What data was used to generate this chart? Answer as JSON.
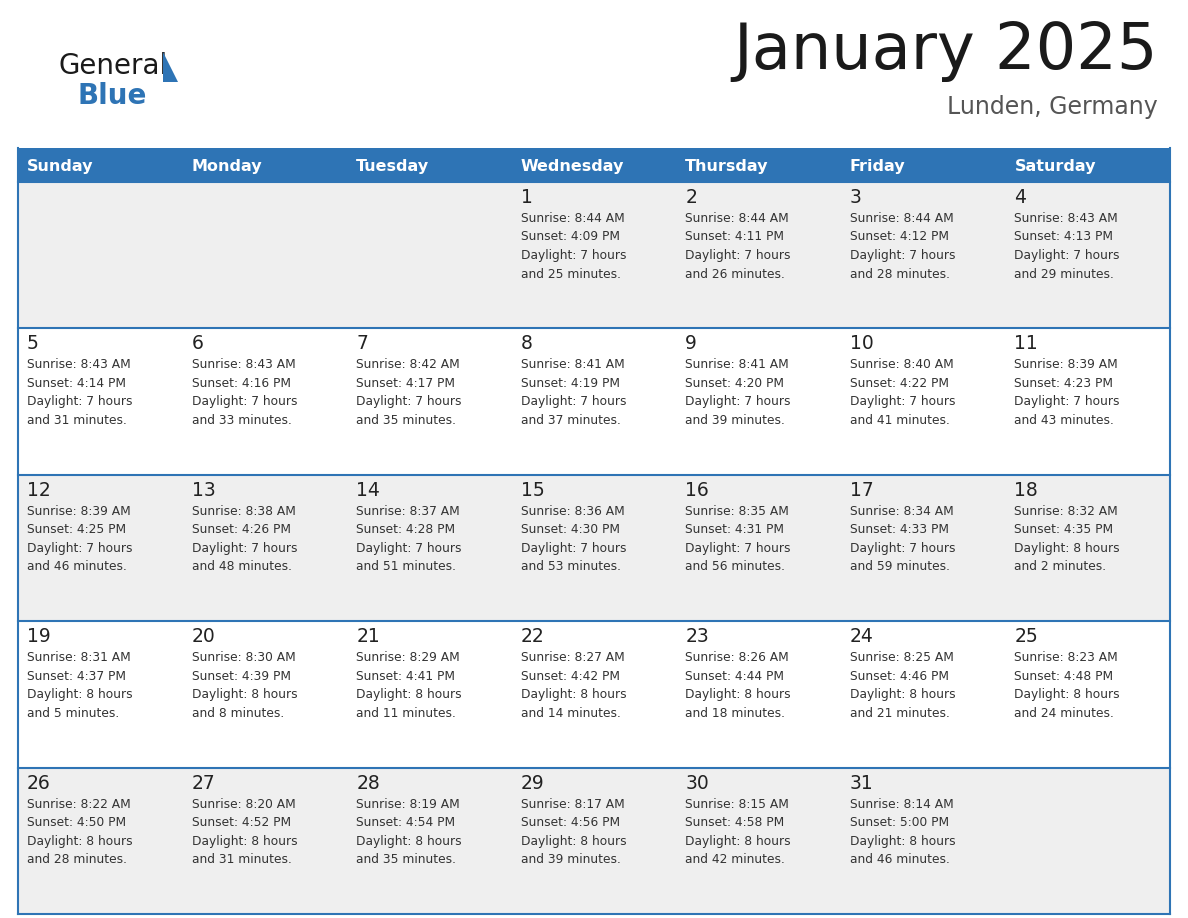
{
  "title": "January 2025",
  "subtitle": "Lunden, Germany",
  "days_of_week": [
    "Sunday",
    "Monday",
    "Tuesday",
    "Wednesday",
    "Thursday",
    "Friday",
    "Saturday"
  ],
  "header_bg": "#2E74B5",
  "header_text": "#FFFFFF",
  "row_bg_even": "#EFEFEF",
  "row_bg_odd": "#FFFFFF",
  "cell_border": "#2E74B5",
  "day_num_color": "#222222",
  "cell_text_color": "#333333",
  "title_color": "#1a1a1a",
  "subtitle_color": "#555555",
  "logo_general_color": "#1a1a1a",
  "logo_blue_color": "#2E74B5",
  "fig_width": 11.88,
  "fig_height": 9.18,
  "dpi": 100,
  "calendar": [
    [
      {
        "day": "",
        "info": ""
      },
      {
        "day": "",
        "info": ""
      },
      {
        "day": "",
        "info": ""
      },
      {
        "day": "1",
        "info": "Sunrise: 8:44 AM\nSunset: 4:09 PM\nDaylight: 7 hours\nand 25 minutes."
      },
      {
        "day": "2",
        "info": "Sunrise: 8:44 AM\nSunset: 4:11 PM\nDaylight: 7 hours\nand 26 minutes."
      },
      {
        "day": "3",
        "info": "Sunrise: 8:44 AM\nSunset: 4:12 PM\nDaylight: 7 hours\nand 28 minutes."
      },
      {
        "day": "4",
        "info": "Sunrise: 8:43 AM\nSunset: 4:13 PM\nDaylight: 7 hours\nand 29 minutes."
      }
    ],
    [
      {
        "day": "5",
        "info": "Sunrise: 8:43 AM\nSunset: 4:14 PM\nDaylight: 7 hours\nand 31 minutes."
      },
      {
        "day": "6",
        "info": "Sunrise: 8:43 AM\nSunset: 4:16 PM\nDaylight: 7 hours\nand 33 minutes."
      },
      {
        "day": "7",
        "info": "Sunrise: 8:42 AM\nSunset: 4:17 PM\nDaylight: 7 hours\nand 35 minutes."
      },
      {
        "day": "8",
        "info": "Sunrise: 8:41 AM\nSunset: 4:19 PM\nDaylight: 7 hours\nand 37 minutes."
      },
      {
        "day": "9",
        "info": "Sunrise: 8:41 AM\nSunset: 4:20 PM\nDaylight: 7 hours\nand 39 minutes."
      },
      {
        "day": "10",
        "info": "Sunrise: 8:40 AM\nSunset: 4:22 PM\nDaylight: 7 hours\nand 41 minutes."
      },
      {
        "day": "11",
        "info": "Sunrise: 8:39 AM\nSunset: 4:23 PM\nDaylight: 7 hours\nand 43 minutes."
      }
    ],
    [
      {
        "day": "12",
        "info": "Sunrise: 8:39 AM\nSunset: 4:25 PM\nDaylight: 7 hours\nand 46 minutes."
      },
      {
        "day": "13",
        "info": "Sunrise: 8:38 AM\nSunset: 4:26 PM\nDaylight: 7 hours\nand 48 minutes."
      },
      {
        "day": "14",
        "info": "Sunrise: 8:37 AM\nSunset: 4:28 PM\nDaylight: 7 hours\nand 51 minutes."
      },
      {
        "day": "15",
        "info": "Sunrise: 8:36 AM\nSunset: 4:30 PM\nDaylight: 7 hours\nand 53 minutes."
      },
      {
        "day": "16",
        "info": "Sunrise: 8:35 AM\nSunset: 4:31 PM\nDaylight: 7 hours\nand 56 minutes."
      },
      {
        "day": "17",
        "info": "Sunrise: 8:34 AM\nSunset: 4:33 PM\nDaylight: 7 hours\nand 59 minutes."
      },
      {
        "day": "18",
        "info": "Sunrise: 8:32 AM\nSunset: 4:35 PM\nDaylight: 8 hours\nand 2 minutes."
      }
    ],
    [
      {
        "day": "19",
        "info": "Sunrise: 8:31 AM\nSunset: 4:37 PM\nDaylight: 8 hours\nand 5 minutes."
      },
      {
        "day": "20",
        "info": "Sunrise: 8:30 AM\nSunset: 4:39 PM\nDaylight: 8 hours\nand 8 minutes."
      },
      {
        "day": "21",
        "info": "Sunrise: 8:29 AM\nSunset: 4:41 PM\nDaylight: 8 hours\nand 11 minutes."
      },
      {
        "day": "22",
        "info": "Sunrise: 8:27 AM\nSunset: 4:42 PM\nDaylight: 8 hours\nand 14 minutes."
      },
      {
        "day": "23",
        "info": "Sunrise: 8:26 AM\nSunset: 4:44 PM\nDaylight: 8 hours\nand 18 minutes."
      },
      {
        "day": "24",
        "info": "Sunrise: 8:25 AM\nSunset: 4:46 PM\nDaylight: 8 hours\nand 21 minutes."
      },
      {
        "day": "25",
        "info": "Sunrise: 8:23 AM\nSunset: 4:48 PM\nDaylight: 8 hours\nand 24 minutes."
      }
    ],
    [
      {
        "day": "26",
        "info": "Sunrise: 8:22 AM\nSunset: 4:50 PM\nDaylight: 8 hours\nand 28 minutes."
      },
      {
        "day": "27",
        "info": "Sunrise: 8:20 AM\nSunset: 4:52 PM\nDaylight: 8 hours\nand 31 minutes."
      },
      {
        "day": "28",
        "info": "Sunrise: 8:19 AM\nSunset: 4:54 PM\nDaylight: 8 hours\nand 35 minutes."
      },
      {
        "day": "29",
        "info": "Sunrise: 8:17 AM\nSunset: 4:56 PM\nDaylight: 8 hours\nand 39 minutes."
      },
      {
        "day": "30",
        "info": "Sunrise: 8:15 AM\nSunset: 4:58 PM\nDaylight: 8 hours\nand 42 minutes."
      },
      {
        "day": "31",
        "info": "Sunrise: 8:14 AM\nSunset: 5:00 PM\nDaylight: 8 hours\nand 46 minutes."
      },
      {
        "day": "",
        "info": ""
      }
    ]
  ]
}
